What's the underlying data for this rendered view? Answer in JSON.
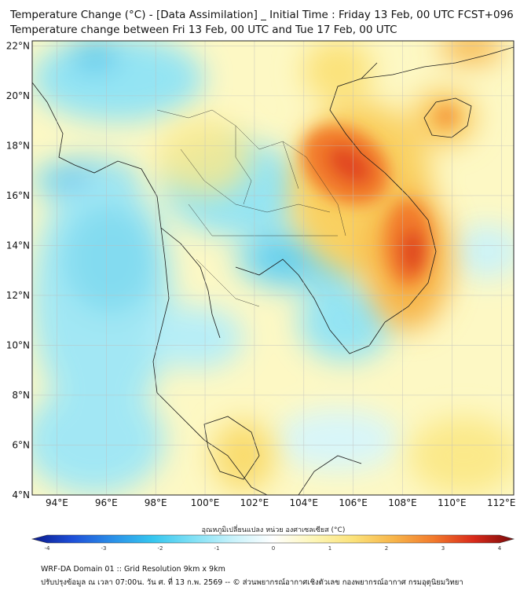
{
  "title_line1": "Temperature Change (°C) - [Data Assimilation] _ Initial Time : Friday 13 Feb, 00 UTC FCST+096",
  "title_line2": "Temperature change between Fri 13 Feb, 00 UTC and Tue 17 Feb, 00 UTC",
  "map": {
    "lon_range": [
      93,
      112.5
    ],
    "lat_range": [
      4,
      22.2
    ],
    "lat_ticks": [
      "22°N",
      "20°N",
      "18°N",
      "16°N",
      "14°N",
      "12°N",
      "10°N",
      "8°N",
      "6°N",
      "4°N"
    ],
    "lon_ticks": [
      "94°E",
      "96°E",
      "98°E",
      "100°E",
      "102°E",
      "104°E",
      "106°E",
      "108°E",
      "110°E",
      "112°E"
    ],
    "grid": true,
    "field_description": "temperature change",
    "hotspots": [
      {
        "lon": 105.8,
        "lat": 16.8,
        "change": 2.8
      },
      {
        "lon": 108.3,
        "lat": 13.8,
        "change": 3.0
      },
      {
        "lon": 109.7,
        "lat": 19.2,
        "change": 2.4
      },
      {
        "lon": 95.8,
        "lat": 16.5,
        "change": -2.0
      },
      {
        "lon": 95.5,
        "lat": 21.5,
        "change": -1.5
      }
    ]
  },
  "colorbar": {
    "label": "อุณหภูมิเปลี่ยนแปลง หน่วย องศาเซลเซียส (°C)",
    "min": -4,
    "max": 4,
    "ticks": [
      "-4",
      "-3",
      "-2",
      "-1",
      "0",
      "1",
      "2",
      "3",
      "4"
    ],
    "colors": [
      "#0a1a8c",
      "#1e4fd8",
      "#2a8fe8",
      "#35c6ef",
      "#7fe0f5",
      "#c8f2fb",
      "#ffffff",
      "#fdf6b8",
      "#fbe27a",
      "#f7b54a",
      "#f27a2c",
      "#d92a1a",
      "#7a0a0a"
    ]
  },
  "footer_line1": "WRF-DA Domain 01 :: Grid Resolution 9km x 9km",
  "footer_line2": "ปรับปรุงข้อมูล ณ เวลา 07:00น. วัน ศ. ที่ 13 ก.พ. 2569 -- © ส่วนพยากรณ์อากาศเชิงตัวเลข กองพยากรณ์อากาศ กรมอุตุนิยมวิทยา"
}
